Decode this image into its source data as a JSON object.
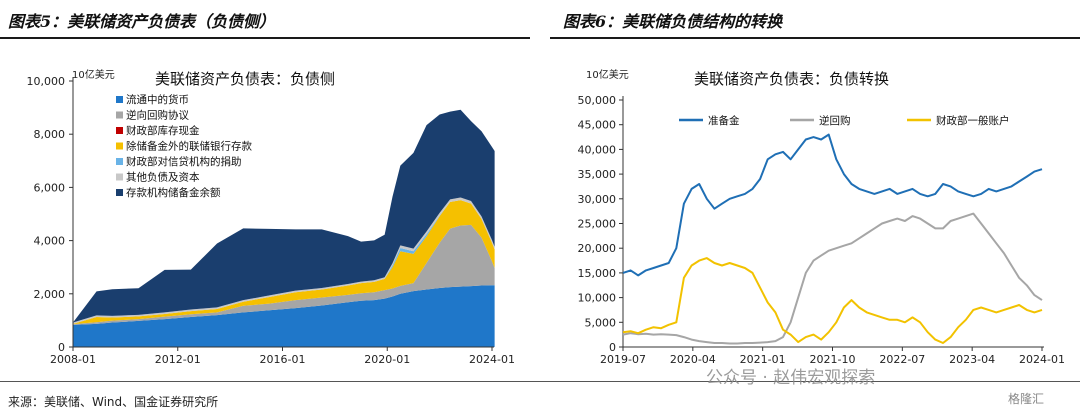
{
  "header": {
    "left_title": "图表5：美联储资产负债表（负债侧）",
    "right_title": "图表6：美联储负债结构的转换"
  },
  "footer": {
    "source": "来源：美联储、Wind、国金证券研究所",
    "watermark": "公众号 · 赵伟宏观探索",
    "watermark_logo": "格隆汇"
  },
  "chart_data": [
    {
      "type": "area",
      "title": "美联储资产负债表：负债侧",
      "ylabel": "10亿美元",
      "xlabel": "",
      "ylim": [
        0,
        10000
      ],
      "yticks": [
        "0",
        "2,000",
        "4,000",
        "6,000",
        "8,000",
        "10,000"
      ],
      "xticks": [
        "2008-01",
        "2012-01",
        "2016-01",
        "2020-01",
        "2024-01"
      ],
      "x": [
        2008.0,
        2008.9,
        2009.5,
        2010.5,
        2011.5,
        2012.5,
        2013.5,
        2014.5,
        2015.5,
        2016.5,
        2017.5,
        2018.5,
        2019.0,
        2019.5,
        2019.9,
        2020.2,
        2020.5,
        2021.0,
        2021.5,
        2022.0,
        2022.4,
        2022.8,
        2023.2,
        2023.6,
        2024.0,
        2024.1
      ],
      "stacked": true,
      "legend_position": "top-left",
      "series": [
        {
          "name": "流通中的货币",
          "color": "#1f77c9",
          "values": [
            830,
            870,
            920,
            980,
            1050,
            1130,
            1200,
            1300,
            1380,
            1460,
            1560,
            1680,
            1740,
            1760,
            1820,
            1900,
            2000,
            2100,
            2160,
            2220,
            2250,
            2270,
            2290,
            2310,
            2320,
            2320
          ]
        },
        {
          "name": "逆向回购协议",
          "color": "#a6a6a6",
          "values": [
            30,
            60,
            70,
            70,
            90,
            100,
            100,
            250,
            250,
            300,
            300,
            280,
            280,
            300,
            320,
            300,
            300,
            300,
            1000,
            1700,
            2200,
            2300,
            2300,
            1800,
            900,
            650
          ]
        },
        {
          "name": "财政部库存现金",
          "color": "#c00000",
          "values": [
            0,
            0,
            0,
            0,
            0,
            0,
            0,
            0,
            0,
            0,
            0,
            0,
            0,
            0,
            0,
            0,
            0,
            0,
            0,
            0,
            0,
            0,
            0,
            0,
            0,
            0
          ]
        },
        {
          "name": "除储备金外的联储银行存款",
          "color": "#f5c000",
          "values": [
            10,
            200,
            120,
            100,
            100,
            120,
            130,
            150,
            250,
            300,
            300,
            350,
            380,
            390,
            420,
            800,
            1300,
            1100,
            1000,
            1000,
            1000,
            950,
            800,
            700,
            700,
            700
          ]
        },
        {
          "name": "财政部对信贷机构的捐助",
          "color": "#69b3e7",
          "values": [
            0,
            0,
            0,
            0,
            0,
            0,
            0,
            0,
            0,
            0,
            0,
            0,
            0,
            0,
            0,
            70,
            120,
            100,
            80,
            20,
            0,
            0,
            0,
            0,
            0,
            0
          ]
        },
        {
          "name": "其他负债及资本",
          "color": "#c8c8c8",
          "values": [
            50,
            60,
            60,
            60,
            60,
            60,
            60,
            60,
            60,
            60,
            60,
            60,
            60,
            60,
            60,
            80,
            100,
            100,
            100,
            100,
            100,
            100,
            100,
            100,
            100,
            100
          ]
        },
        {
          "name": "存款机构储备金余额",
          "color": "#1a3e6e",
          "values": [
            0,
            900,
            1000,
            1000,
            1600,
            1500,
            2400,
            2700,
            2500,
            2300,
            2200,
            1800,
            1500,
            1500,
            1600,
            2500,
            3000,
            3600,
            4000,
            3700,
            3300,
            3300,
            3000,
            3200,
            3500,
            3600
          ]
        }
      ]
    },
    {
      "type": "line",
      "title": "美联储资产负债表：负债转换",
      "ylabel": "10亿美元",
      "xlabel": "",
      "ylim": [
        0,
        50000
      ],
      "yticks": [
        "0",
        "5,000",
        "10,000",
        "15,000",
        "20,000",
        "25,000",
        "30,000",
        "35,000",
        "40,000",
        "45,000",
        "50,000"
      ],
      "xticks": [
        "2019-07",
        "2020-04",
        "2021-01",
        "2021-10",
        "2022-07",
        "2023-04",
        "2024-01"
      ],
      "x": [
        0,
        1,
        2,
        3,
        4,
        5,
        6,
        7,
        8,
        9,
        10,
        11,
        12,
        13,
        14,
        15,
        16,
        17,
        18,
        19,
        20,
        21,
        22,
        23,
        24,
        25,
        26,
        27,
        28,
        29,
        30,
        31,
        32,
        33,
        34,
        35,
        36,
        37,
        38,
        39,
        40,
        41,
        42,
        43,
        44,
        45,
        46,
        47,
        48,
        49,
        50,
        51,
        52,
        53,
        54,
        55
      ],
      "legend_position": "top",
      "series": [
        {
          "name": "准备金",
          "color": "#1f6fb5",
          "values": [
            15000,
            15500,
            14500,
            15500,
            16000,
            16500,
            17000,
            20000,
            29000,
            32000,
            33000,
            30000,
            28000,
            29000,
            30000,
            30500,
            31000,
            32000,
            34000,
            38000,
            39000,
            39500,
            38000,
            40000,
            42000,
            42500,
            42000,
            43000,
            38000,
            35000,
            33000,
            32000,
            31500,
            31000,
            31500,
            32000,
            31000,
            31500,
            32000,
            31000,
            30500,
            31000,
            33000,
            32500,
            31500,
            31000,
            30500,
            31000,
            32000,
            31500,
            32000,
            32500,
            33500,
            34500,
            35500,
            36000
          ]
        },
        {
          "name": "逆回购",
          "color": "#a6a6a6",
          "values": [
            2500,
            2800,
            2600,
            2700,
            2500,
            2600,
            2500,
            2400,
            2000,
            1500,
            1200,
            1000,
            800,
            800,
            700,
            700,
            800,
            800,
            900,
            1000,
            1200,
            2000,
            5000,
            10000,
            15000,
            17500,
            18500,
            19500,
            20000,
            20500,
            21000,
            22000,
            23000,
            24000,
            25000,
            25500,
            26000,
            25500,
            26500,
            26000,
            25000,
            24000,
            24000,
            25500,
            26000,
            26500,
            27000,
            25000,
            23000,
            21000,
            19000,
            16500,
            14000,
            12500,
            10500,
            9500
          ]
        },
        {
          "name": "财政部一般账户",
          "color": "#f2c200",
          "values": [
            3000,
            3200,
            2800,
            3500,
            4000,
            3800,
            4500,
            5000,
            14000,
            16500,
            17500,
            18000,
            17000,
            16500,
            17000,
            16500,
            16000,
            15000,
            12000,
            9000,
            7000,
            3500,
            2500,
            1000,
            2000,
            2500,
            1500,
            3000,
            5000,
            8000,
            9500,
            8000,
            7000,
            6500,
            6000,
            5500,
            5500,
            5000,
            6000,
            5000,
            3000,
            1500,
            800,
            2000,
            4000,
            5500,
            7500,
            8000,
            7500,
            7000,
            7500,
            8000,
            8500,
            7500,
            7000,
            7500
          ]
        }
      ]
    }
  ]
}
